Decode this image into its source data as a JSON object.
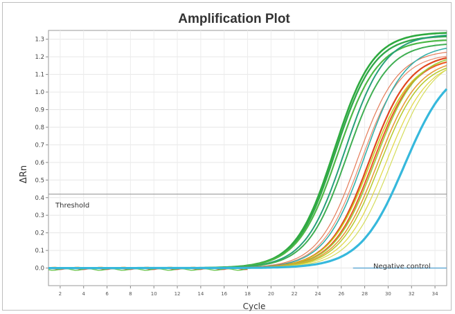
{
  "chart_data": {
    "type": "line",
    "title": "Amplification Plot",
    "xlabel": "Cycle",
    "ylabel": "ΔRn",
    "xlim": [
      1,
      35
    ],
    "ylim": [
      -0.1,
      1.35
    ],
    "x_ticks": [
      2,
      4,
      6,
      8,
      10,
      12,
      14,
      16,
      18,
      20,
      22,
      24,
      26,
      28,
      30,
      32,
      34
    ],
    "y_ticks": [
      0.0,
      0.1,
      0.2,
      0.3,
      0.4,
      0.5,
      0.6,
      0.7,
      0.8,
      0.9,
      1.0,
      1.1,
      1.2,
      1.3
    ],
    "grid": true,
    "threshold": {
      "label": "Threshold",
      "value": 0.42,
      "color": "#999999"
    },
    "annotations": [
      {
        "text": "Negative control",
        "x": 30.2,
        "y": 0.05
      }
    ],
    "curves": [
      {
        "color": "#2eaa3f",
        "plateau": 1.34,
        "midpoint": 25.4,
        "slope": 1.65,
        "width": 2.6
      },
      {
        "color": "#33a84a",
        "plateau": 1.32,
        "midpoint": 25.5,
        "slope": 1.65,
        "width": 2.4
      },
      {
        "color": "#4cb846",
        "plateau": 1.3,
        "midpoint": 25.7,
        "slope": 1.7,
        "width": 2.2
      },
      {
        "color": "#27a07a",
        "plateau": 1.33,
        "midpoint": 26.3,
        "slope": 1.7,
        "width": 2.0
      },
      {
        "color": "#3fae52",
        "plateau": 1.28,
        "midpoint": 26.5,
        "slope": 1.7,
        "width": 2.0
      },
      {
        "color": "#e47a57",
        "plateau": 1.24,
        "midpoint": 27.4,
        "slope": 1.7,
        "width": 1.2
      },
      {
        "color": "#ea8a6a",
        "plateau": 1.22,
        "midpoint": 27.7,
        "slope": 1.7,
        "width": 1.2
      },
      {
        "color": "#35b0a8",
        "plateau": 1.27,
        "midpoint": 28.0,
        "slope": 1.72,
        "width": 1.6
      },
      {
        "color": "#e1461f",
        "plateau": 1.22,
        "midpoint": 28.4,
        "slope": 1.72,
        "width": 2.2
      },
      {
        "color": "#c8d020",
        "plateau": 1.2,
        "midpoint": 28.5,
        "slope": 1.75,
        "width": 1.6
      },
      {
        "color": "#ef5a2a",
        "plateau": 1.2,
        "midpoint": 28.7,
        "slope": 1.72,
        "width": 2.0
      },
      {
        "color": "#9ccc3a",
        "plateau": 1.22,
        "midpoint": 28.9,
        "slope": 1.75,
        "width": 1.6
      },
      {
        "color": "#e89a3a",
        "plateau": 1.19,
        "midpoint": 29.1,
        "slope": 1.75,
        "width": 1.6
      },
      {
        "color": "#b4c92a",
        "plateau": 1.18,
        "midpoint": 29.3,
        "slope": 1.75,
        "width": 1.5
      },
      {
        "color": "#e2d84a",
        "plateau": 1.19,
        "midpoint": 29.8,
        "slope": 1.8,
        "width": 1.3
      },
      {
        "color": "#d4dc5a",
        "plateau": 1.21,
        "midpoint": 30.3,
        "slope": 1.8,
        "width": 1.2
      },
      {
        "color": "#36b8dc",
        "plateau": 1.17,
        "midpoint": 31.4,
        "slope": 1.9,
        "width": 3.2
      }
    ],
    "baseline_colors": [
      "#ff9900",
      "#e53d22",
      "#55bb33"
    ],
    "negative_control_line": {
      "color": "#6fb0d8",
      "value": 0.0
    }
  }
}
